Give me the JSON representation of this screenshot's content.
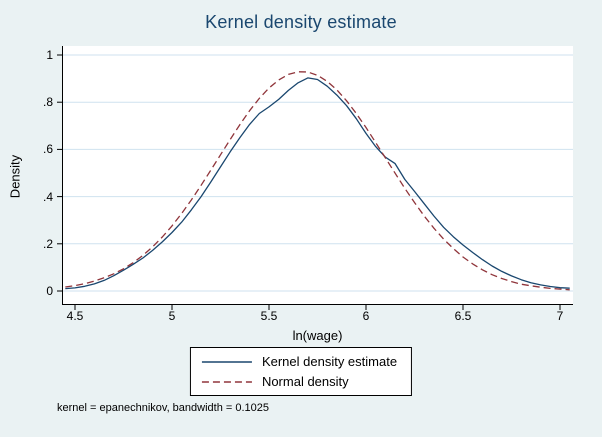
{
  "title": "Kernel density estimate",
  "note": "kernel = epanechnikov, bandwidth = 0.1025",
  "colors": {
    "background": "#eaf2f3",
    "plot_bg": "#ffffff",
    "title": "#1a476f",
    "grid": "#cfe2ef",
    "axis": "#000000",
    "kernel_line": "#1a476f",
    "normal_line": "#90353b"
  },
  "legend": {
    "items": [
      {
        "label": "Kernel density estimate",
        "color": "#1a476f",
        "dash": "solid"
      },
      {
        "label": "Normal density",
        "color": "#90353b",
        "dash": "dashed"
      }
    ]
  },
  "chart_data": {
    "type": "line",
    "title": "Kernel density estimate",
    "xlabel": "ln(wage)",
    "ylabel": "Density",
    "xlim": [
      4.45,
      7.07
    ],
    "ylim": [
      0,
      1
    ],
    "grid": "horizontal",
    "legend_position": "bottom",
    "x_ticks": {
      "values": [
        4.5,
        5,
        5.5,
        6,
        6.5,
        7
      ],
      "labels": [
        "4.5",
        "5",
        "5.5",
        "6",
        "6.5",
        "7"
      ]
    },
    "y_ticks": {
      "values": [
        0,
        0.2,
        0.4,
        0.6,
        0.8,
        1
      ],
      "labels": [
        "0",
        ".2",
        ".4",
        ".6",
        ".8",
        "1"
      ]
    },
    "x": [
      4.45,
      4.5,
      4.55,
      4.6,
      4.65,
      4.7,
      4.75,
      4.8,
      4.85,
      4.9,
      4.95,
      5.0,
      5.05,
      5.1,
      5.15,
      5.2,
      5.25,
      5.3,
      5.35,
      5.4,
      5.45,
      5.5,
      5.55,
      5.6,
      5.65,
      5.7,
      5.75,
      5.8,
      5.85,
      5.9,
      5.95,
      6.0,
      6.05,
      6.1,
      6.15,
      6.2,
      6.25,
      6.3,
      6.35,
      6.4,
      6.45,
      6.5,
      6.55,
      6.6,
      6.65,
      6.7,
      6.75,
      6.8,
      6.85,
      6.9,
      6.95,
      7.0,
      7.05
    ],
    "series": [
      {
        "name": "Kernel density estimate",
        "style": "solid",
        "color": "#1a476f",
        "values": [
          0.01,
          0.013,
          0.02,
          0.03,
          0.045,
          0.065,
          0.088,
          0.113,
          0.14,
          0.172,
          0.208,
          0.248,
          0.292,
          0.344,
          0.4,
          0.462,
          0.526,
          0.59,
          0.65,
          0.706,
          0.752,
          0.78,
          0.812,
          0.85,
          0.882,
          0.903,
          0.896,
          0.868,
          0.83,
          0.785,
          0.73,
          0.668,
          0.612,
          0.567,
          0.54,
          0.473,
          0.422,
          0.37,
          0.318,
          0.27,
          0.23,
          0.195,
          0.163,
          0.133,
          0.106,
          0.083,
          0.064,
          0.048,
          0.035,
          0.026,
          0.019,
          0.014,
          0.012
        ]
      },
      {
        "name": "Normal density",
        "style": "dashed",
        "color": "#90353b",
        "values": [
          0.017,
          0.023,
          0.031,
          0.042,
          0.056,
          0.073,
          0.094,
          0.12,
          0.151,
          0.187,
          0.229,
          0.276,
          0.329,
          0.386,
          0.448,
          0.512,
          0.577,
          0.642,
          0.705,
          0.764,
          0.816,
          0.86,
          0.894,
          0.918,
          0.929,
          0.928,
          0.914,
          0.888,
          0.852,
          0.806,
          0.752,
          0.693,
          0.629,
          0.564,
          0.499,
          0.435,
          0.375,
          0.318,
          0.266,
          0.22,
          0.18,
          0.144,
          0.115,
          0.09,
          0.069,
          0.053,
          0.04,
          0.029,
          0.022,
          0.016,
          0.011,
          0.008,
          0.005
        ]
      }
    ]
  }
}
